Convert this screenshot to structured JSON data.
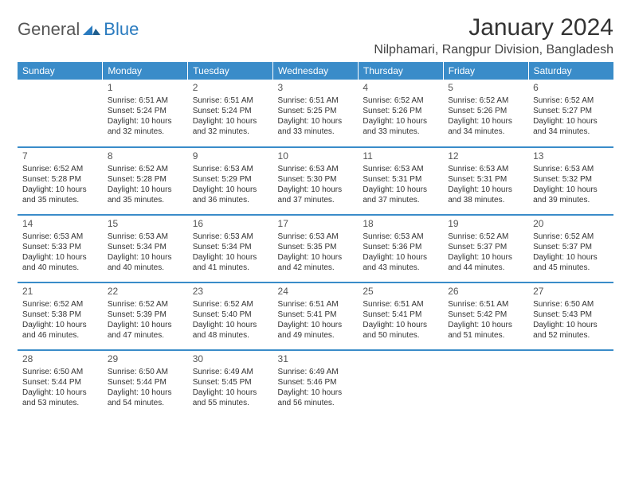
{
  "logo": {
    "text1": "General",
    "text2": "Blue"
  },
  "title": "January 2024",
  "location": "Nilphamari, Rangpur Division, Bangladesh",
  "colors": {
    "header_bg": "#3a8cc9",
    "header_text": "#ffffff",
    "rule": "#3a8cc9",
    "body_text": "#333333",
    "logo_gray": "#555555",
    "logo_blue": "#2a7bbf",
    "page_bg": "#ffffff"
  },
  "typography": {
    "title_fontsize": 30,
    "location_fontsize": 16,
    "dayheader_fontsize": 12,
    "cell_fontsize": 10,
    "daynum_fontsize": 12
  },
  "weekdays": [
    "Sunday",
    "Monday",
    "Tuesday",
    "Wednesday",
    "Thursday",
    "Friday",
    "Saturday"
  ],
  "weeks": [
    [
      null,
      {
        "n": "1",
        "sunrise": "Sunrise: 6:51 AM",
        "sunset": "Sunset: 5:24 PM",
        "daylight": "Daylight: 10 hours and 32 minutes."
      },
      {
        "n": "2",
        "sunrise": "Sunrise: 6:51 AM",
        "sunset": "Sunset: 5:24 PM",
        "daylight": "Daylight: 10 hours and 32 minutes."
      },
      {
        "n": "3",
        "sunrise": "Sunrise: 6:51 AM",
        "sunset": "Sunset: 5:25 PM",
        "daylight": "Daylight: 10 hours and 33 minutes."
      },
      {
        "n": "4",
        "sunrise": "Sunrise: 6:52 AM",
        "sunset": "Sunset: 5:26 PM",
        "daylight": "Daylight: 10 hours and 33 minutes."
      },
      {
        "n": "5",
        "sunrise": "Sunrise: 6:52 AM",
        "sunset": "Sunset: 5:26 PM",
        "daylight": "Daylight: 10 hours and 34 minutes."
      },
      {
        "n": "6",
        "sunrise": "Sunrise: 6:52 AM",
        "sunset": "Sunset: 5:27 PM",
        "daylight": "Daylight: 10 hours and 34 minutes."
      }
    ],
    [
      {
        "n": "7",
        "sunrise": "Sunrise: 6:52 AM",
        "sunset": "Sunset: 5:28 PM",
        "daylight": "Daylight: 10 hours and 35 minutes."
      },
      {
        "n": "8",
        "sunrise": "Sunrise: 6:52 AM",
        "sunset": "Sunset: 5:28 PM",
        "daylight": "Daylight: 10 hours and 35 minutes."
      },
      {
        "n": "9",
        "sunrise": "Sunrise: 6:53 AM",
        "sunset": "Sunset: 5:29 PM",
        "daylight": "Daylight: 10 hours and 36 minutes."
      },
      {
        "n": "10",
        "sunrise": "Sunrise: 6:53 AM",
        "sunset": "Sunset: 5:30 PM",
        "daylight": "Daylight: 10 hours and 37 minutes."
      },
      {
        "n": "11",
        "sunrise": "Sunrise: 6:53 AM",
        "sunset": "Sunset: 5:31 PM",
        "daylight": "Daylight: 10 hours and 37 minutes."
      },
      {
        "n": "12",
        "sunrise": "Sunrise: 6:53 AM",
        "sunset": "Sunset: 5:31 PM",
        "daylight": "Daylight: 10 hours and 38 minutes."
      },
      {
        "n": "13",
        "sunrise": "Sunrise: 6:53 AM",
        "sunset": "Sunset: 5:32 PM",
        "daylight": "Daylight: 10 hours and 39 minutes."
      }
    ],
    [
      {
        "n": "14",
        "sunrise": "Sunrise: 6:53 AM",
        "sunset": "Sunset: 5:33 PM",
        "daylight": "Daylight: 10 hours and 40 minutes."
      },
      {
        "n": "15",
        "sunrise": "Sunrise: 6:53 AM",
        "sunset": "Sunset: 5:34 PM",
        "daylight": "Daylight: 10 hours and 40 minutes."
      },
      {
        "n": "16",
        "sunrise": "Sunrise: 6:53 AM",
        "sunset": "Sunset: 5:34 PM",
        "daylight": "Daylight: 10 hours and 41 minutes."
      },
      {
        "n": "17",
        "sunrise": "Sunrise: 6:53 AM",
        "sunset": "Sunset: 5:35 PM",
        "daylight": "Daylight: 10 hours and 42 minutes."
      },
      {
        "n": "18",
        "sunrise": "Sunrise: 6:53 AM",
        "sunset": "Sunset: 5:36 PM",
        "daylight": "Daylight: 10 hours and 43 minutes."
      },
      {
        "n": "19",
        "sunrise": "Sunrise: 6:52 AM",
        "sunset": "Sunset: 5:37 PM",
        "daylight": "Daylight: 10 hours and 44 minutes."
      },
      {
        "n": "20",
        "sunrise": "Sunrise: 6:52 AM",
        "sunset": "Sunset: 5:37 PM",
        "daylight": "Daylight: 10 hours and 45 minutes."
      }
    ],
    [
      {
        "n": "21",
        "sunrise": "Sunrise: 6:52 AM",
        "sunset": "Sunset: 5:38 PM",
        "daylight": "Daylight: 10 hours and 46 minutes."
      },
      {
        "n": "22",
        "sunrise": "Sunrise: 6:52 AM",
        "sunset": "Sunset: 5:39 PM",
        "daylight": "Daylight: 10 hours and 47 minutes."
      },
      {
        "n": "23",
        "sunrise": "Sunrise: 6:52 AM",
        "sunset": "Sunset: 5:40 PM",
        "daylight": "Daylight: 10 hours and 48 minutes."
      },
      {
        "n": "24",
        "sunrise": "Sunrise: 6:51 AM",
        "sunset": "Sunset: 5:41 PM",
        "daylight": "Daylight: 10 hours and 49 minutes."
      },
      {
        "n": "25",
        "sunrise": "Sunrise: 6:51 AM",
        "sunset": "Sunset: 5:41 PM",
        "daylight": "Daylight: 10 hours and 50 minutes."
      },
      {
        "n": "26",
        "sunrise": "Sunrise: 6:51 AM",
        "sunset": "Sunset: 5:42 PM",
        "daylight": "Daylight: 10 hours and 51 minutes."
      },
      {
        "n": "27",
        "sunrise": "Sunrise: 6:50 AM",
        "sunset": "Sunset: 5:43 PM",
        "daylight": "Daylight: 10 hours and 52 minutes."
      }
    ],
    [
      {
        "n": "28",
        "sunrise": "Sunrise: 6:50 AM",
        "sunset": "Sunset: 5:44 PM",
        "daylight": "Daylight: 10 hours and 53 minutes."
      },
      {
        "n": "29",
        "sunrise": "Sunrise: 6:50 AM",
        "sunset": "Sunset: 5:44 PM",
        "daylight": "Daylight: 10 hours and 54 minutes."
      },
      {
        "n": "30",
        "sunrise": "Sunrise: 6:49 AM",
        "sunset": "Sunset: 5:45 PM",
        "daylight": "Daylight: 10 hours and 55 minutes."
      },
      {
        "n": "31",
        "sunrise": "Sunrise: 6:49 AM",
        "sunset": "Sunset: 5:46 PM",
        "daylight": "Daylight: 10 hours and 56 minutes."
      },
      null,
      null,
      null
    ]
  ]
}
